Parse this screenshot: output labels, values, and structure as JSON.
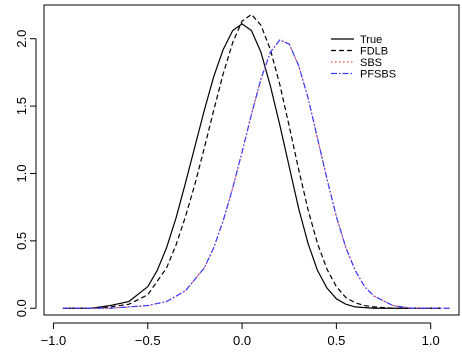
{
  "chart_data": {
    "type": "line",
    "title": "",
    "xlabel": "",
    "ylabel": "",
    "xlim": [
      -1.05,
      1.15
    ],
    "ylim": [
      -0.05,
      2.25
    ],
    "x_ticks": [
      -1.0,
      -0.5,
      0.0,
      0.5,
      1.0
    ],
    "x_tick_labels": [
      "−1.0",
      "−0.5",
      "0.0",
      "0.5",
      "1.0"
    ],
    "y_ticks": [
      0.0,
      0.5,
      1.0,
      1.5,
      2.0
    ],
    "y_tick_labels": [
      "0.0",
      "0.5",
      "1.0",
      "1.5",
      "2.0"
    ],
    "grid": false,
    "legend_position": "top-right",
    "series": [
      {
        "name": "True",
        "color": "#000000",
        "dash": "solid",
        "points": [
          [
            -0.95,
            0.0
          ],
          [
            -0.8,
            0.0
          ],
          [
            -0.7,
            0.02
          ],
          [
            -0.6,
            0.05
          ],
          [
            -0.5,
            0.16
          ],
          [
            -0.45,
            0.28
          ],
          [
            -0.4,
            0.45
          ],
          [
            -0.35,
            0.67
          ],
          [
            -0.3,
            0.93
          ],
          [
            -0.25,
            1.2
          ],
          [
            -0.2,
            1.47
          ],
          [
            -0.15,
            1.72
          ],
          [
            -0.1,
            1.92
          ],
          [
            -0.05,
            2.06
          ],
          [
            0.0,
            2.11
          ],
          [
            0.05,
            2.06
          ],
          [
            0.1,
            1.9
          ],
          [
            0.15,
            1.65
          ],
          [
            0.2,
            1.36
          ],
          [
            0.25,
            1.05
          ],
          [
            0.3,
            0.74
          ],
          [
            0.35,
            0.48
          ],
          [
            0.4,
            0.28
          ],
          [
            0.45,
            0.15
          ],
          [
            0.5,
            0.07
          ],
          [
            0.55,
            0.03
          ],
          [
            0.6,
            0.01
          ],
          [
            0.7,
            0.0
          ],
          [
            0.8,
            0.0
          ],
          [
            1.05,
            0.0
          ]
        ]
      },
      {
        "name": "FDLB",
        "color": "#000000",
        "dash": "dashed",
        "points": [
          [
            -0.95,
            0.0
          ],
          [
            -0.8,
            0.0
          ],
          [
            -0.7,
            0.01
          ],
          [
            -0.6,
            0.03
          ],
          [
            -0.5,
            0.1
          ],
          [
            -0.4,
            0.3
          ],
          [
            -0.35,
            0.47
          ],
          [
            -0.3,
            0.68
          ],
          [
            -0.25,
            0.92
          ],
          [
            -0.2,
            1.19
          ],
          [
            -0.15,
            1.47
          ],
          [
            -0.1,
            1.74
          ],
          [
            -0.05,
            1.97
          ],
          [
            0.0,
            2.13
          ],
          [
            0.05,
            2.18
          ],
          [
            0.1,
            2.1
          ],
          [
            0.15,
            1.92
          ],
          [
            0.2,
            1.66
          ],
          [
            0.25,
            1.35
          ],
          [
            0.3,
            1.03
          ],
          [
            0.35,
            0.73
          ],
          [
            0.4,
            0.48
          ],
          [
            0.45,
            0.29
          ],
          [
            0.5,
            0.16
          ],
          [
            0.55,
            0.08
          ],
          [
            0.6,
            0.04
          ],
          [
            0.65,
            0.02
          ],
          [
            0.7,
            0.01
          ],
          [
            0.8,
            0.0
          ],
          [
            1.05,
            0.0
          ]
        ]
      },
      {
        "name": "SBS",
        "color": "#ff4d4d",
        "dash": "dotted",
        "points": [
          [
            -0.95,
            0.0
          ],
          [
            -0.7,
            0.0
          ],
          [
            -0.6,
            0.01
          ],
          [
            -0.5,
            0.02
          ],
          [
            -0.4,
            0.05
          ],
          [
            -0.3,
            0.13
          ],
          [
            -0.2,
            0.3
          ],
          [
            -0.15,
            0.45
          ],
          [
            -0.1,
            0.65
          ],
          [
            -0.05,
            0.89
          ],
          [
            0.0,
            1.16
          ],
          [
            0.05,
            1.44
          ],
          [
            0.1,
            1.7
          ],
          [
            0.15,
            1.9
          ],
          [
            0.2,
            1.99
          ],
          [
            0.25,
            1.96
          ],
          [
            0.3,
            1.8
          ],
          [
            0.35,
            1.56
          ],
          [
            0.4,
            1.26
          ],
          [
            0.45,
            0.96
          ],
          [
            0.5,
            0.68
          ],
          [
            0.55,
            0.45
          ],
          [
            0.6,
            0.28
          ],
          [
            0.65,
            0.16
          ],
          [
            0.7,
            0.09
          ],
          [
            0.8,
            0.02
          ],
          [
            0.9,
            0.0
          ],
          [
            1.1,
            0.0
          ]
        ]
      },
      {
        "name": "PFSBS",
        "color": "#3a3aff",
        "dash": "dashdot",
        "points": [
          [
            -0.95,
            0.0
          ],
          [
            -0.7,
            0.0
          ],
          [
            -0.6,
            0.01
          ],
          [
            -0.5,
            0.02
          ],
          [
            -0.4,
            0.05
          ],
          [
            -0.3,
            0.13
          ],
          [
            -0.2,
            0.3
          ],
          [
            -0.15,
            0.45
          ],
          [
            -0.1,
            0.65
          ],
          [
            -0.05,
            0.89
          ],
          [
            0.0,
            1.16
          ],
          [
            0.05,
            1.44
          ],
          [
            0.1,
            1.7
          ],
          [
            0.15,
            1.9
          ],
          [
            0.2,
            1.99
          ],
          [
            0.25,
            1.96
          ],
          [
            0.3,
            1.8
          ],
          [
            0.35,
            1.56
          ],
          [
            0.4,
            1.26
          ],
          [
            0.45,
            0.96
          ],
          [
            0.5,
            0.68
          ],
          [
            0.55,
            0.45
          ],
          [
            0.6,
            0.28
          ],
          [
            0.65,
            0.16
          ],
          [
            0.7,
            0.09
          ],
          [
            0.8,
            0.02
          ],
          [
            0.9,
            0.0
          ],
          [
            1.1,
            0.0
          ]
        ]
      }
    ]
  }
}
